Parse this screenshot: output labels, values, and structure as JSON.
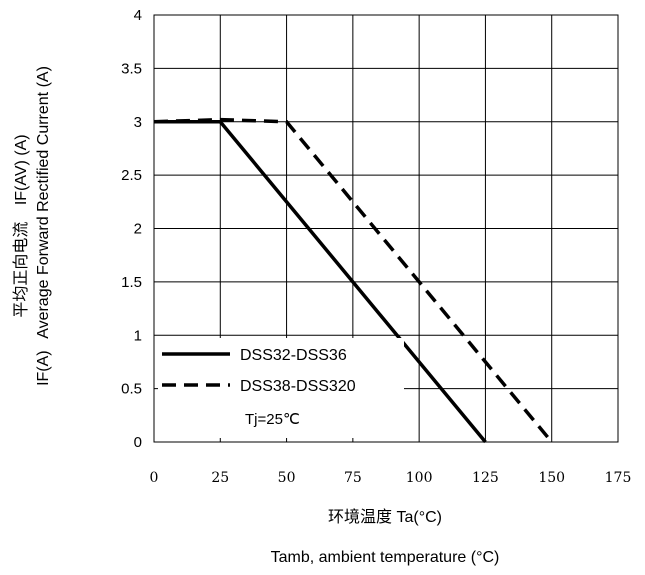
{
  "chart_data": {
    "type": "line",
    "xlabel_cn": "环境温度 Ta(°C)",
    "xlabel_en": "Tamb, ambient temperature (°C)",
    "ylabel_parts": [
      "IF(A)",
      "Average Forward Rectified Current (A)",
      "平均正向电流",
      "IF(AV) (A)"
    ],
    "xlim": [
      0,
      175
    ],
    "ylim": [
      0,
      4
    ],
    "x_ticks": [
      0,
      25,
      50,
      75,
      100,
      125,
      150,
      175
    ],
    "y_ticks": [
      0,
      0.5,
      1,
      1.5,
      2,
      2.5,
      3,
      3.5,
      4
    ],
    "y_tick_labels": [
      "0",
      "0.5",
      "1",
      "1.5",
      "2",
      "2.5",
      "3",
      "3.5",
      "4"
    ],
    "grid": true,
    "legend_placement": "bottom-left",
    "series": [
      {
        "name": "DSS32-DSS36",
        "style": "solid",
        "x": [
          0,
          25,
          125
        ],
        "y": [
          3,
          3,
          0
        ]
      },
      {
        "name": "DSS38-DSS320",
        "style": "dashed",
        "x": [
          0,
          25,
          50,
          150
        ],
        "y": [
          3,
          3.02,
          3,
          0
        ]
      }
    ],
    "annotation": "Tj=25℃"
  }
}
